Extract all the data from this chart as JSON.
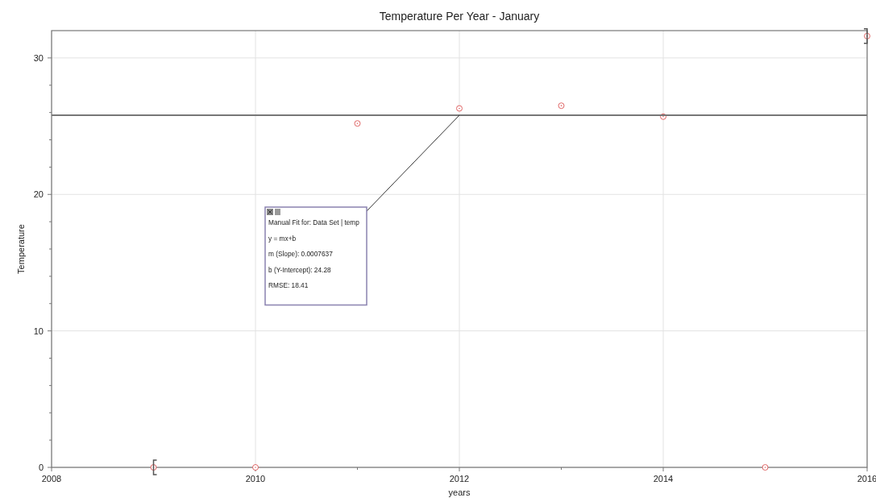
{
  "chart_data": {
    "type": "scatter",
    "title": "Temperature Per Year - January",
    "xlabel": "years",
    "ylabel": "Temperature",
    "x": [
      2009,
      2010,
      2011,
      2012,
      2013,
      2014,
      2015,
      2016
    ],
    "series": [
      {
        "color": "#e06666",
        "marker": "circle",
        "values": [
          0,
          0,
          25.2,
          26.3,
          26.5,
          25.7,
          0,
          31.6
        ]
      },
      {
        "type": "line",
        "color": "#777777",
        "marker": "none",
        "line_style": "solid",
        "x": [
          2008,
          2016
        ],
        "values": [
          25.8,
          25.8
        ]
      }
    ],
    "xlim": [
      2008,
      2016
    ],
    "ylim": [
      0,
      32
    ],
    "xticks": [
      2008,
      {
        "value": 2009,
        "label": null
      },
      2010,
      {
        "value": 2011,
        "label": null
      },
      2012,
      {
        "value": 2013,
        "label": null
      },
      2014,
      {
        "value": 2015,
        "label": null
      },
      2016
    ],
    "yticks": [
      0,
      {
        "value": 2,
        "label": null
      },
      {
        "value": 4,
        "label": null
      },
      {
        "value": 6,
        "label": null
      },
      {
        "value": 8,
        "label": null
      },
      10,
      {
        "value": 12,
        "label": null
      },
      {
        "value": 14,
        "label": null
      },
      {
        "value": 16,
        "label": null
      },
      {
        "value": 18,
        "label": null
      },
      20,
      {
        "value": 22,
        "label": null
      },
      {
        "value": 24,
        "label": null
      },
      {
        "value": 26,
        "label": null
      },
      {
        "value": 28,
        "label": null
      },
      30
    ],
    "grid": true,
    "annotations": [
      "Manual Fit for: Data Set | temp",
      "y = mx+b",
      "m (Slope): 0.0007637",
      "b (Y-Intercept): 24.28",
      "RMSE: 18.41"
    ]
  }
}
